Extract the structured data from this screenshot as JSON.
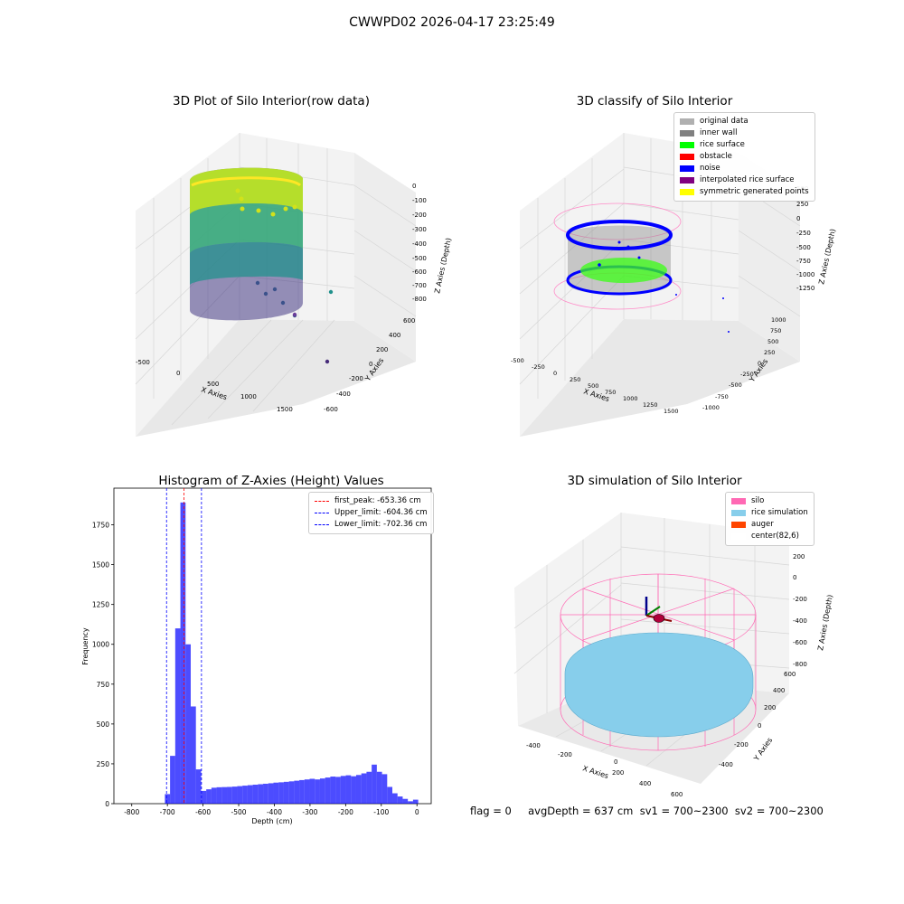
{
  "figure": {
    "suptitle": "CWWPD02 2026-04-17 23:25:49",
    "footer": "flag = 0     avgDepth = 637 cm  sv1 = 700~2300  sv2 = 700~2300"
  },
  "panels": {
    "raw": {
      "title": "3D Plot of Silo Interior(row data)",
      "xlabel": "X Axies",
      "ylabel": "Y Axies",
      "zlabel": "Z Axies (Depth)",
      "xticks": [
        "-500",
        "0",
        "500",
        "1000",
        "1500"
      ],
      "yticks": [
        "-600",
        "-400",
        "-200",
        "0",
        "200",
        "400",
        "600"
      ],
      "zticks": [
        "-800",
        "-700",
        "-600",
        "-500",
        "-400",
        "-300",
        "-200",
        "-100",
        "0"
      ]
    },
    "classify": {
      "title": "3D classify of Silo Interior",
      "xlabel": "X Axies",
      "ylabel": "Y Axies",
      "zlabel": "Z Axies (Depth)",
      "xticks": [
        "-500",
        "-250",
        "0",
        "250",
        "500",
        "750",
        "1000",
        "1250",
        "1500"
      ],
      "yticks": [
        "-1000",
        "-750",
        "-500",
        "-250",
        "0",
        "250",
        "500",
        "750",
        "1000"
      ],
      "zticks": [
        "-1250",
        "-1000",
        "-750",
        "-500",
        "-250",
        "0",
        "250",
        "500"
      ]
    },
    "simulation": {
      "title": "3D simulation of Silo Interior",
      "xlabel": "X Axies",
      "ylabel": "Y Axies",
      "zlabel": "Z Axies (Depth)",
      "xticks": [
        "-400",
        "-200",
        "0",
        "200",
        "400",
        "600"
      ],
      "yticks": [
        "-400",
        "-200",
        "0",
        "200",
        "400",
        "600"
      ],
      "zticks": [
        "-800",
        "-600",
        "-400",
        "-200",
        "0",
        "200"
      ]
    }
  },
  "legends": {
    "classify": [
      {
        "label": "original data",
        "color": "#b0b0b0"
      },
      {
        "label": "inner wall",
        "color": "#808080"
      },
      {
        "label": "rice surface",
        "color": "#00ff00"
      },
      {
        "label": "obstacle",
        "color": "#ff0000"
      },
      {
        "label": "noise",
        "color": "#0000ff"
      },
      {
        "label": "interpolated rice surface",
        "color": "#800080"
      },
      {
        "label": "symmetric generated points",
        "color": "#ffff00"
      }
    ],
    "simulation": [
      {
        "label": "silo",
        "color": "#ff69b4"
      },
      {
        "label": "rice simulation",
        "color": "#87ceeb"
      },
      {
        "label": "auger",
        "color": "#ff4500"
      },
      {
        "label": "center(82,6)",
        "color": "#ffffff"
      }
    ]
  },
  "chart_data": [
    {
      "type": "scatter",
      "title": "3D Plot of Silo Interior(row data)",
      "xlabel": "X Axies",
      "ylabel": "Y Axies",
      "zlabel": "Z Axies (Depth)",
      "xlim": [
        -600,
        1700
      ],
      "ylim": [
        -650,
        650
      ],
      "zlim": [
        -900,
        50
      ],
      "colormap": "viridis",
      "grid": true
    },
    {
      "type": "scatter",
      "title": "3D classify of Silo Interior",
      "xlabel": "X Axies",
      "ylabel": "Y Axies",
      "zlabel": "Z Axies (Depth)",
      "xlim": [
        -550,
        1600
      ],
      "ylim": [
        -1050,
        1050
      ],
      "zlim": [
        -1350,
        550
      ],
      "legend_position": "top-right",
      "grid": true
    },
    {
      "type": "bar",
      "title": "Histogram of Z-Axies (Height) Values",
      "xlabel": "Depth (cm)",
      "ylabel": "Frequency",
      "xlim": [
        -850,
        40
      ],
      "ylim": [
        0,
        1980
      ],
      "xticks": [
        -800,
        -700,
        -600,
        -500,
        -400,
        -300,
        -200,
        -100,
        0
      ],
      "yticks": [
        0,
        250,
        500,
        750,
        1000,
        1250,
        1500,
        1750
      ],
      "bin_width": 14.5,
      "color": "#0000ff",
      "bins": [
        {
          "x0": -707,
          "value": 60
        },
        {
          "x0": -692.5,
          "value": 300
        },
        {
          "x0": -678,
          "value": 1100
        },
        {
          "x0": -663.5,
          "value": 1890
        },
        {
          "x0": -649,
          "value": 1000
        },
        {
          "x0": -634.5,
          "value": 610
        },
        {
          "x0": -620,
          "value": 215
        },
        {
          "x0": -605.5,
          "value": 80
        },
        {
          "x0": -591,
          "value": 90
        },
        {
          "x0": -576.5,
          "value": 100
        },
        {
          "x0": -562,
          "value": 103
        },
        {
          "x0": -547.5,
          "value": 104
        },
        {
          "x0": -533,
          "value": 105
        },
        {
          "x0": -518.5,
          "value": 107
        },
        {
          "x0": -504,
          "value": 110
        },
        {
          "x0": -489.5,
          "value": 113
        },
        {
          "x0": -475,
          "value": 116
        },
        {
          "x0": -460.5,
          "value": 119
        },
        {
          "x0": -446,
          "value": 122
        },
        {
          "x0": -431.5,
          "value": 125
        },
        {
          "x0": -417,
          "value": 128
        },
        {
          "x0": -402.5,
          "value": 132
        },
        {
          "x0": -388,
          "value": 134
        },
        {
          "x0": -373.5,
          "value": 137
        },
        {
          "x0": -359,
          "value": 140
        },
        {
          "x0": -344.5,
          "value": 144
        },
        {
          "x0": -330,
          "value": 148
        },
        {
          "x0": -315.5,
          "value": 152
        },
        {
          "x0": -301,
          "value": 156
        },
        {
          "x0": -286.5,
          "value": 152
        },
        {
          "x0": -272,
          "value": 158
        },
        {
          "x0": -257.5,
          "value": 164
        },
        {
          "x0": -243,
          "value": 170
        },
        {
          "x0": -228.5,
          "value": 168
        },
        {
          "x0": -214,
          "value": 174
        },
        {
          "x0": -199.5,
          "value": 178
        },
        {
          "x0": -185,
          "value": 172
        },
        {
          "x0": -170.5,
          "value": 180
        },
        {
          "x0": -156,
          "value": 190
        },
        {
          "x0": -141.5,
          "value": 200
        },
        {
          "x0": -127,
          "value": 245
        },
        {
          "x0": -112.5,
          "value": 200
        },
        {
          "x0": -98,
          "value": 185
        },
        {
          "x0": -83.5,
          "value": 105
        },
        {
          "x0": -69,
          "value": 65
        },
        {
          "x0": -54.5,
          "value": 45
        },
        {
          "x0": -40,
          "value": 30
        },
        {
          "x0": -25.5,
          "value": 15
        },
        {
          "x0": -11,
          "value": 25
        }
      ],
      "vlines": [
        {
          "label": "first_peak: -653.36 cm",
          "x": -653.36,
          "color": "#ff0000"
        },
        {
          "label": "Upper_limit: -604.36 cm",
          "x": -604.36,
          "color": "#0000ff"
        },
        {
          "label": "Lower_limit: -702.36 cm",
          "x": -702.36,
          "color": "#0000ff"
        }
      ],
      "legend_position": "top-right"
    },
    {
      "type": "scatter",
      "title": "3D simulation of Silo Interior",
      "xlabel": "X Axies",
      "ylabel": "Y Axies",
      "zlabel": "Z Axies (Depth)",
      "xlim": [
        -500,
        700
      ],
      "ylim": [
        -500,
        700
      ],
      "zlim": [
        -850,
        350
      ],
      "legend_position": "top-right",
      "grid": true
    }
  ]
}
